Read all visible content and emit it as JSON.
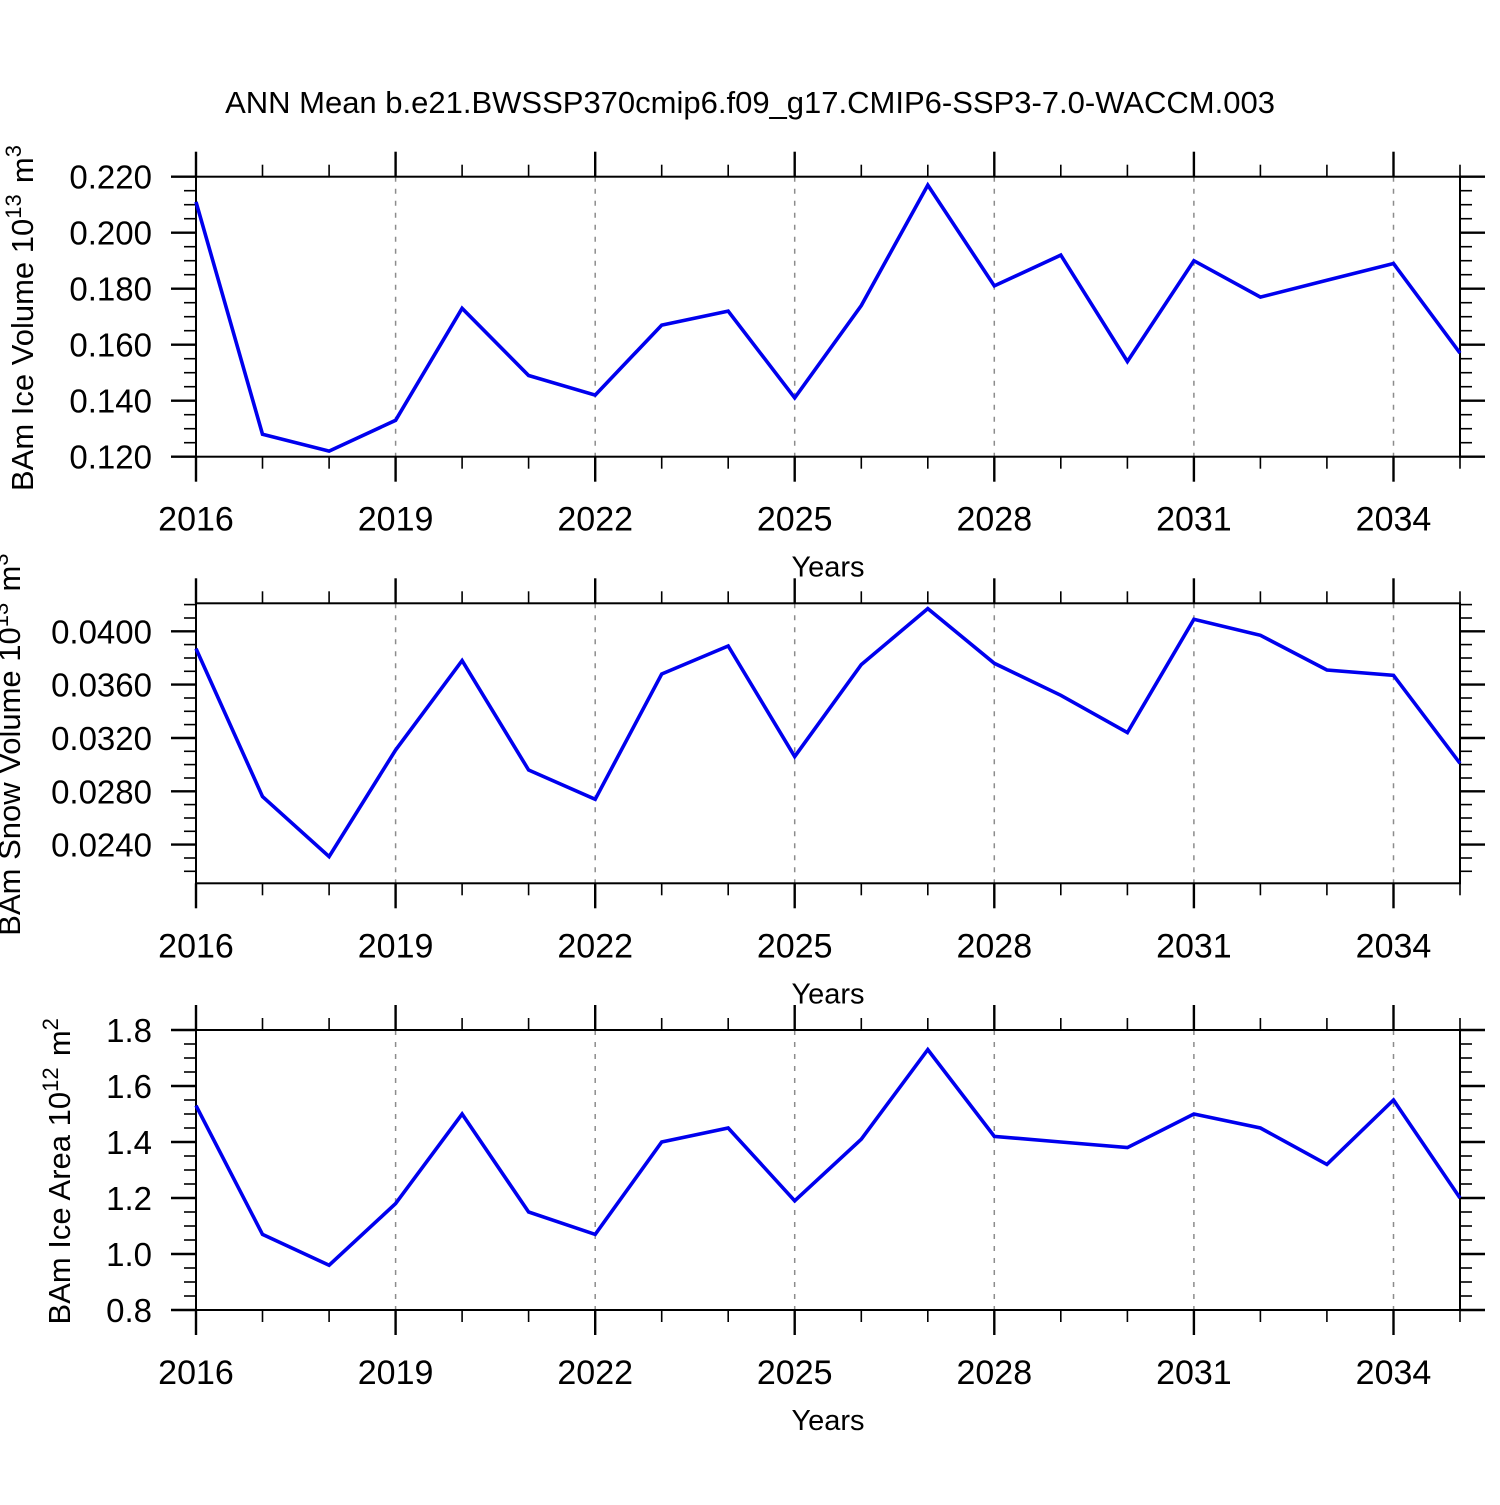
{
  "title": "ANN Mean b.e21.BWSSP370cmip6.f09_g17.CMIP6-SSP3-7.0-WACCM.003",
  "figure": {
    "background": "#ffffff",
    "line_color": "#0000ee",
    "axis_color": "#000000",
    "gridline_color": "#8c8c8c"
  },
  "x_axis": {
    "label": "Years",
    "start": 2016,
    "end": 2035,
    "major_tick_years": [
      2016,
      2019,
      2022,
      2025,
      2028,
      2031,
      2034
    ],
    "tick_labels": [
      "2016",
      "2019",
      "2022",
      "2025",
      "2028",
      "2031",
      "2034"
    ],
    "gridline_years": [
      2019,
      2022,
      2025,
      2028,
      2031,
      2034
    ],
    "minor_tick_step_years": 1
  },
  "chart_data": [
    {
      "type": "line",
      "name": "bam-ice-volume",
      "ylabel": "BAm Ice Volume 10¹³ m³",
      "ylabel_parts": [
        {
          "text": "BAm Ice Volume 10"
        },
        {
          "sup": "13"
        },
        {
          "text": " m"
        },
        {
          "sup": "3"
        }
      ],
      "xlabel": "Years",
      "x": [
        2016,
        2017,
        2018,
        2019,
        2020,
        2021,
        2022,
        2023,
        2024,
        2025,
        2026,
        2027,
        2028,
        2029,
        2030,
        2031,
        2032,
        2033,
        2034,
        2035
      ],
      "values": [
        0.211,
        0.128,
        0.122,
        0.133,
        0.173,
        0.149,
        0.142,
        0.167,
        0.172,
        0.141,
        0.174,
        0.217,
        0.181,
        0.192,
        0.154,
        0.19,
        0.177,
        0.183,
        0.189,
        0.157
      ],
      "ylim": [
        0.12,
        0.22
      ],
      "ytick_values": [
        0.12,
        0.14,
        0.16,
        0.18,
        0.2,
        0.22
      ],
      "ytick_labels": [
        "0.120",
        "0.140",
        "0.160",
        "0.180",
        "0.200",
        "0.220"
      ],
      "y_minor_step": 0.005,
      "grid": "vertical-dashed",
      "legend": "none"
    },
    {
      "type": "line",
      "name": "bam-snow-volume",
      "ylabel": "BAm Snow Volume 10¹³ m³",
      "ylabel_parts": [
        {
          "text": "BAm Snow Volume 10"
        },
        {
          "sup": "13"
        },
        {
          "text": " m"
        },
        {
          "sup": "3"
        }
      ],
      "xlabel": "Years",
      "x": [
        2016,
        2017,
        2018,
        2019,
        2020,
        2021,
        2022,
        2023,
        2024,
        2025,
        2026,
        2027,
        2028,
        2029,
        2030,
        2031,
        2032,
        2033,
        2034,
        2035
      ],
      "values": [
        0.0387,
        0.0276,
        0.0231,
        0.0311,
        0.0378,
        0.0296,
        0.0274,
        0.0368,
        0.0389,
        0.0306,
        0.0375,
        0.0417,
        0.0376,
        0.0352,
        0.0324,
        0.0409,
        0.0397,
        0.0371,
        0.0367,
        0.0301
      ],
      "ylim": [
        0.0211,
        0.0421
      ],
      "ytick_values": [
        0.024,
        0.028,
        0.032,
        0.036,
        0.04
      ],
      "ytick_labels": [
        "0.0240",
        "0.0280",
        "0.0320",
        "0.0360",
        "0.0400"
      ],
      "y_minor_step": 0.001,
      "grid": "vertical-dashed",
      "legend": "none"
    },
    {
      "type": "line",
      "name": "bam-ice-area",
      "ylabel": "BAm Ice Area 10¹² m²",
      "ylabel_parts": [
        {
          "text": "BAm Ice Area 10"
        },
        {
          "sup": "12"
        },
        {
          "text": " m"
        },
        {
          "sup": "2"
        }
      ],
      "xlabel": "Years",
      "x": [
        2016,
        2017,
        2018,
        2019,
        2020,
        2021,
        2022,
        2023,
        2024,
        2025,
        2026,
        2027,
        2028,
        2029,
        2030,
        2031,
        2032,
        2033,
        2034,
        2035
      ],
      "values": [
        1.53,
        1.07,
        0.96,
        1.18,
        1.5,
        1.15,
        1.07,
        1.4,
        1.45,
        1.19,
        1.41,
        1.73,
        1.42,
        1.4,
        1.38,
        1.5,
        1.45,
        1.32,
        1.55,
        1.2
      ],
      "ylim": [
        0.8,
        1.8
      ],
      "ytick_values": [
        0.8,
        1.0,
        1.2,
        1.4,
        1.6,
        1.8
      ],
      "ytick_labels": [
        "0.8",
        "1.0",
        "1.2",
        "1.4",
        "1.6",
        "1.8"
      ],
      "y_minor_step": 0.05,
      "grid": "vertical-dashed",
      "legend": "none"
    }
  ]
}
